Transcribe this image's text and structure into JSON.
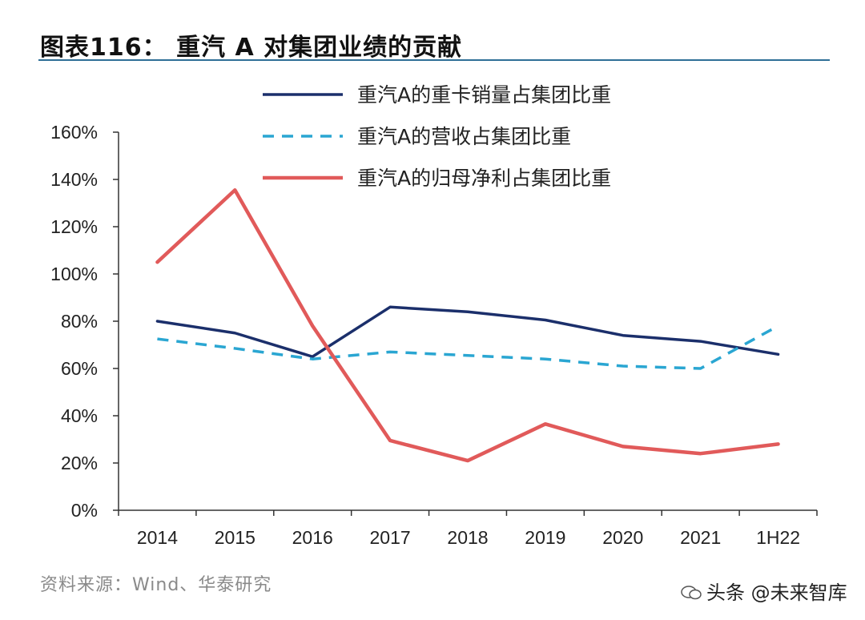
{
  "header": {
    "title": "图表116：  重汽 A 对集团业绩的贡献"
  },
  "footer": {
    "source": "资料来源：Wind、华泰研究",
    "watermark": "头条 @未来智库"
  },
  "colors": {
    "series1": "#1b2f6b",
    "series2": "#2aa6d2",
    "series3": "#e15a5a",
    "axis": "#333333",
    "title_rule": "#2f6f97"
  },
  "chart_data": {
    "type": "line",
    "title": "重汽 A 对集团业绩的贡献",
    "xlabel": "",
    "ylabel": "",
    "categories": [
      "2014",
      "2015",
      "2016",
      "2017",
      "2018",
      "2019",
      "2020",
      "2021",
      "1H22"
    ],
    "y_ticks": [
      "0%",
      "20%",
      "40%",
      "60%",
      "80%",
      "100%",
      "120%",
      "140%",
      "160%"
    ],
    "ylim": [
      0,
      160
    ],
    "grid": false,
    "legend_position": "top-right",
    "series": [
      {
        "name": "重汽A的重卡销量占集团比重",
        "style": "solid",
        "values": [
          80,
          75,
          65,
          86,
          84,
          80.5,
          74,
          71.5,
          66
        ]
      },
      {
        "name": "重汽A的营收占集团比重",
        "style": "dashed",
        "values": [
          72.5,
          68.5,
          64,
          67,
          65.5,
          64,
          61,
          60,
          78
        ]
      },
      {
        "name": "重汽A的归母净利占集团比重",
        "style": "solid",
        "values": [
          105,
          135.5,
          78,
          29.5,
          21,
          36.5,
          27,
          24,
          28
        ]
      }
    ]
  }
}
